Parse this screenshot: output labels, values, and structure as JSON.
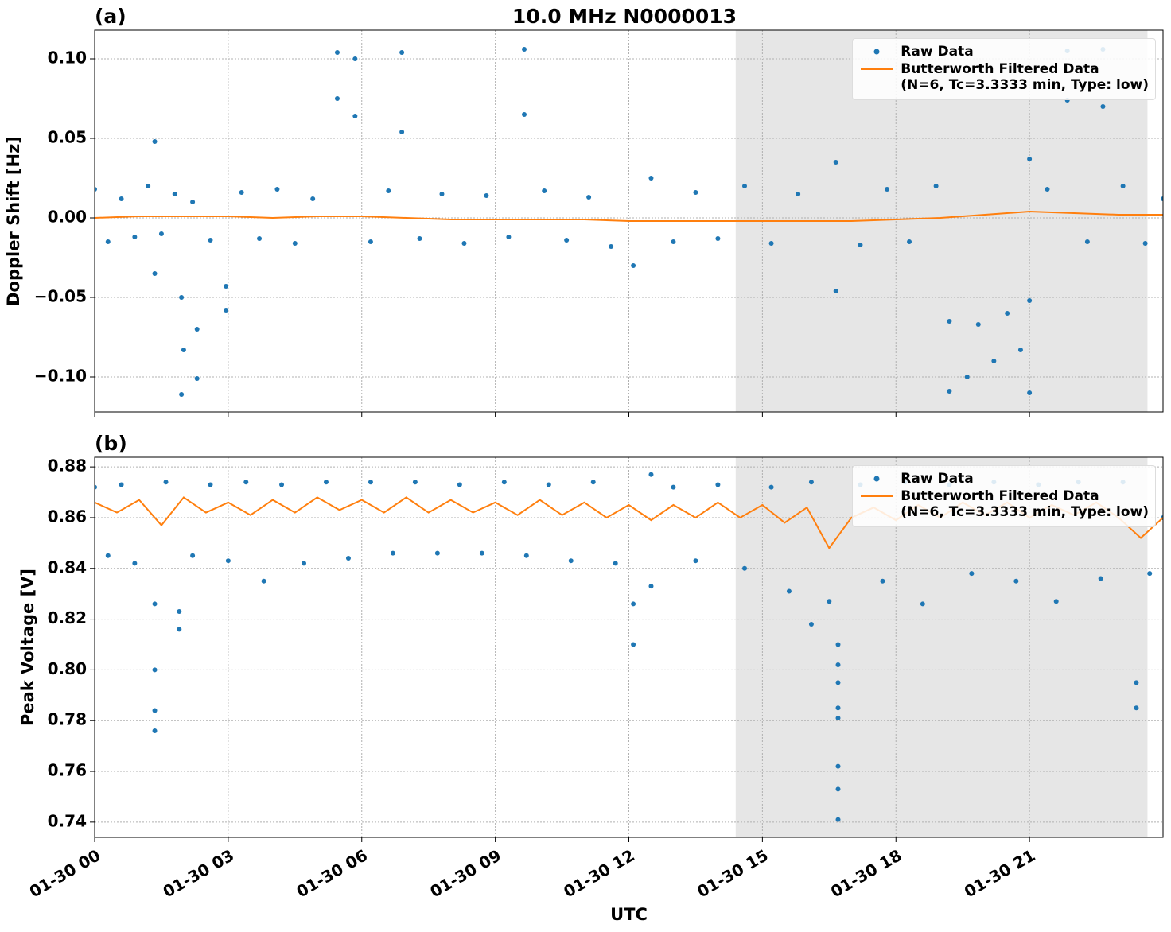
{
  "title": "10.0 MHz N0000013",
  "chart_data": [
    {
      "type": "scatter",
      "panel_label": "(a)",
      "ylabel": "Doppler Shift [Hz]",
      "xlim": [
        0,
        24
      ],
      "xticks": [
        0,
        3,
        6,
        9,
        12,
        15,
        18,
        21
      ],
      "ylim": [
        0.118,
        -0.122
      ],
      "yticks": [
        {
          "value": 0.1,
          "label": "0.10"
        },
        0.05,
        {
          "value": 0,
          "label": "0.00"
        },
        {
          "value": -0.05,
          "label": "−0.05"
        },
        {
          "value": -0.1,
          "label": "−0.10"
        }
      ],
      "grid": true,
      "shaded_xrange": [
        14.4,
        23.65
      ],
      "legend": "upper right",
      "series": [
        {
          "name": "Raw Data",
          "mode": "markers",
          "color": "#1f77b4",
          "x": [
            0,
            0.3,
            0.6,
            0.9,
            1.2,
            1.35,
            1.35,
            1.5,
            1.8,
            1.95,
            1.95,
            2.0,
            2.2,
            2.3,
            2.3,
            2.6,
            2.95,
            2.95,
            3.3,
            3.7,
            4.1,
            4.5,
            4.9,
            5.45,
            5.45,
            5.85,
            5.85,
            6.2,
            6.6,
            6.9,
            6.9,
            7.3,
            7.8,
            8.3,
            8.8,
            9.3,
            9.65,
            9.65,
            10.1,
            10.6,
            11.1,
            11.6,
            12.1,
            12.5,
            13.0,
            13.5,
            14.0,
            14.6,
            15.2,
            15.8,
            16.65,
            16.65,
            17.2,
            17.8,
            18.3,
            18.9,
            19.2,
            19.2,
            19.6,
            19.85,
            20.2,
            20.5,
            20.8,
            21.0,
            21.0,
            21.0,
            21.4,
            21.85,
            21.85,
            22.3,
            22.65,
            22.65,
            23.1,
            23.6,
            24.0
          ],
          "values": [
            0.018,
            -0.015,
            0.012,
            -0.012,
            0.02,
            0.048,
            -0.035,
            -0.01,
            0.015,
            -0.111,
            -0.05,
            -0.083,
            0.01,
            -0.101,
            -0.07,
            -0.014,
            -0.058,
            -0.043,
            0.016,
            -0.013,
            0.018,
            -0.016,
            0.012,
            0.104,
            0.075,
            0.1,
            0.064,
            -0.015,
            0.017,
            0.104,
            0.054,
            -0.013,
            0.015,
            -0.016,
            0.014,
            -0.012,
            0.106,
            0.065,
            0.017,
            -0.014,
            0.013,
            -0.018,
            -0.03,
            0.025,
            -0.015,
            0.016,
            -0.013,
            0.02,
            -0.016,
            0.015,
            0.035,
            -0.046,
            -0.017,
            0.018,
            -0.015,
            0.02,
            -0.109,
            -0.065,
            -0.1,
            -0.067,
            -0.09,
            -0.06,
            -0.083,
            0.037,
            -0.11,
            -0.052,
            0.018,
            0.105,
            0.074,
            -0.015,
            0.106,
            0.07,
            0.02,
            -0.016,
            0.012
          ]
        },
        {
          "name": "Butterworth Filtered Data\n(N=6, Tc=3.3333 min, Type: low)",
          "mode": "line",
          "color": "#ff7f0e",
          "x": [
            0,
            1,
            2,
            3,
            4,
            5,
            6,
            7,
            8,
            9,
            10,
            11,
            12,
            13,
            14,
            15,
            16,
            17,
            18,
            19,
            20,
            21,
            22,
            23,
            24
          ],
          "values": [
            0,
            0.001,
            0.001,
            0.001,
            0,
            0.001,
            0.001,
            0,
            -0.001,
            -0.001,
            -0.001,
            -0.001,
            -0.002,
            -0.002,
            -0.002,
            -0.002,
            -0.002,
            -0.002,
            -0.001,
            0,
            0.002,
            0.004,
            0.003,
            0.002,
            0.002
          ]
        }
      ]
    },
    {
      "type": "scatter",
      "panel_label": "(b)",
      "ylabel": "Peak Voltage [V]",
      "xlabel": "UTC",
      "xlim": [
        0,
        24
      ],
      "xticks": [
        {
          "value": 0,
          "label": "01-30 00"
        },
        {
          "value": 3,
          "label": "01-30 03"
        },
        {
          "value": 6,
          "label": "01-30 06"
        },
        {
          "value": 9,
          "label": "01-30 09"
        },
        {
          "value": 12,
          "label": "01-30 12"
        },
        {
          "value": 15,
          "label": "01-30 15"
        },
        {
          "value": 18,
          "label": "01-30 18"
        },
        {
          "value": 21,
          "label": "01-30 21"
        }
      ],
      "ylim": [
        0.8838,
        0.734
      ],
      "yticks": [
        0.88,
        0.86,
        0.84,
        0.82,
        {
          "value": 0.8,
          "label": "0.80"
        },
        0.78,
        0.76,
        0.74
      ],
      "grid": true,
      "shaded_xrange": [
        14.4,
        23.65
      ],
      "legend": "upper right",
      "series": [
        {
          "name": "Raw Data",
          "mode": "markers",
          "color": "#1f77b4",
          "x": [
            0,
            0.3,
            0.6,
            0.9,
            1.35,
            1.35,
            1.35,
            1.35,
            1.6,
            1.9,
            1.9,
            2.2,
            2.6,
            3.0,
            3.4,
            3.8,
            4.2,
            4.7,
            5.2,
            5.7,
            6.2,
            6.7,
            7.2,
            7.7,
            8.2,
            8.7,
            9.2,
            9.7,
            10.2,
            10.7,
            11.2,
            11.7,
            12.1,
            12.1,
            12.5,
            12.5,
            13.0,
            13.5,
            14.0,
            14.6,
            15.2,
            15.6,
            16.1,
            16.1,
            16.5,
            16.7,
            16.7,
            16.7,
            16.7,
            16.7,
            16.7,
            16.7,
            16.7,
            17.2,
            17.7,
            18.2,
            18.6,
            19.2,
            19.7,
            20.2,
            20.7,
            21.2,
            21.6,
            22.1,
            22.6,
            23.1,
            23.4,
            23.4,
            23.7,
            24.0
          ],
          "values": [
            0.872,
            0.845,
            0.873,
            0.842,
            0.8,
            0.776,
            0.784,
            0.826,
            0.874,
            0.816,
            0.823,
            0.845,
            0.873,
            0.843,
            0.874,
            0.835,
            0.873,
            0.842,
            0.874,
            0.844,
            0.874,
            0.846,
            0.874,
            0.846,
            0.873,
            0.846,
            0.874,
            0.845,
            0.873,
            0.843,
            0.874,
            0.842,
            0.81,
            0.826,
            0.877,
            0.833,
            0.872,
            0.843,
            0.873,
            0.84,
            0.872,
            0.831,
            0.818,
            0.874,
            0.827,
            0.741,
            0.753,
            0.762,
            0.781,
            0.785,
            0.795,
            0.802,
            0.81,
            0.873,
            0.835,
            0.874,
            0.826,
            0.873,
            0.838,
            0.874,
            0.835,
            0.873,
            0.827,
            0.874,
            0.836,
            0.874,
            0.785,
            0.795,
            0.838,
            0.86
          ]
        },
        {
          "name": "Butterworth Filtered Data\n(N=6, Tc=3.3333 min, Type: low)",
          "mode": "line",
          "color": "#ff7f0e",
          "x": [
            0,
            0.5,
            1,
            1.5,
            2,
            2.5,
            3,
            3.5,
            4,
            4.5,
            5,
            5.5,
            6,
            6.5,
            7,
            7.5,
            8,
            8.5,
            9,
            9.5,
            10,
            10.5,
            11,
            11.5,
            12,
            12.5,
            13,
            13.5,
            14,
            14.5,
            15,
            15.5,
            16,
            16.5,
            17,
            17.5,
            18,
            18.5,
            19,
            19.5,
            20,
            20.5,
            21,
            21.5,
            22,
            22.5,
            23,
            23.5,
            24
          ],
          "values": [
            0.866,
            0.862,
            0.867,
            0.857,
            0.868,
            0.862,
            0.866,
            0.861,
            0.867,
            0.862,
            0.868,
            0.863,
            0.867,
            0.862,
            0.868,
            0.862,
            0.867,
            0.862,
            0.866,
            0.861,
            0.867,
            0.861,
            0.866,
            0.86,
            0.865,
            0.859,
            0.865,
            0.86,
            0.866,
            0.86,
            0.865,
            0.858,
            0.864,
            0.848,
            0.86,
            0.864,
            0.859,
            0.865,
            0.86,
            0.866,
            0.861,
            0.866,
            0.86,
            0.865,
            0.861,
            0.866,
            0.86,
            0.852,
            0.86
          ]
        }
      ]
    }
  ]
}
